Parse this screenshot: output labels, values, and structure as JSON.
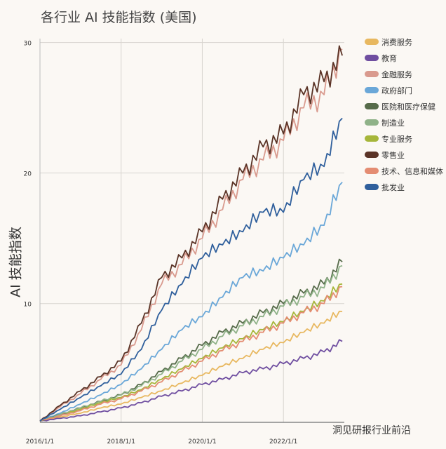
{
  "chart_data": {
    "type": "line",
    "title": "各行业 AI 技能指数 (美国)",
    "ylabel": "AI 技能指数",
    "xlabel": "",
    "x": [
      2016.0,
      2016.5,
      2017.0,
      2017.5,
      2018.0,
      2018.5,
      2019.0,
      2019.5,
      2020.0,
      2020.5,
      2021.0,
      2021.5,
      2022.0,
      2022.5,
      2023.0,
      2023.45
    ],
    "xticks": [
      {
        "x": 2016,
        "label": "2016/1/1"
      },
      {
        "x": 2018,
        "label": "2018/1/1"
      },
      {
        "x": 2020,
        "label": "2020/1/1"
      },
      {
        "x": 2022,
        "label": "2022/1/1"
      }
    ],
    "yticks": [
      {
        "y": 10,
        "label": "10"
      },
      {
        "y": 20,
        "label": "20"
      },
      {
        "y": 30,
        "label": "30"
      }
    ],
    "xlim": [
      2016,
      2023.5
    ],
    "ylim": [
      0.9,
      30.3
    ],
    "grid": true,
    "legend": "right",
    "series": [
      {
        "name": "消费服务",
        "color": "#e8b860",
        "values": [
          1,
          1.3,
          1.6,
          2,
          2.3,
          2.8,
          3.3,
          3.9,
          4.5,
          5.2,
          5.8,
          6.5,
          7,
          7.8,
          8.5,
          9.4
        ]
      },
      {
        "name": "教育",
        "color": "#6f4ea0",
        "values": [
          1,
          1.2,
          1.4,
          1.7,
          2,
          2.4,
          2.9,
          3.3,
          3.8,
          4.2,
          4.7,
          5,
          5.4,
          5.8,
          6.3,
          7.1
        ]
      },
      {
        "name": "金融服务",
        "color": "#d99a8e",
        "values": [
          1,
          2.1,
          3.1,
          4.2,
          5.3,
          8,
          11.5,
          13,
          15,
          17.2,
          19.5,
          21,
          22.5,
          25,
          26,
          29.5
        ]
      },
      {
        "name": "政府部门",
        "color": "#6aa7d8",
        "values": [
          1,
          1.6,
          2.3,
          3,
          3.8,
          5,
          6.5,
          8,
          9,
          10.5,
          12,
          12.5,
          13.5,
          14.5,
          16,
          19.3
        ]
      },
      {
        "name": "医院和医疗保健",
        "color": "#566b4a",
        "values": [
          1,
          1.5,
          2,
          2.5,
          3,
          3.8,
          4.8,
          5.8,
          6.8,
          7.8,
          8.5,
          9.3,
          10,
          10.8,
          11.5,
          13.2
        ]
      },
      {
        "name": "制造业",
        "color": "#8fb288",
        "values": [
          1,
          1.5,
          2,
          2.5,
          3,
          3.7,
          4.6,
          5.6,
          6.5,
          7.5,
          8.3,
          9,
          9.8,
          10.5,
          11.2,
          12.9
        ]
      },
      {
        "name": "专业服务",
        "color": "#a6b63a",
        "values": [
          1,
          1.4,
          1.9,
          2.4,
          2.8,
          3.4,
          4.2,
          5,
          5.8,
          6.6,
          7.3,
          8,
          8.6,
          9.4,
          10.2,
          11.5
        ]
      },
      {
        "name": "零售业",
        "color": "#5a3326",
        "values": [
          1,
          2.2,
          3.3,
          4.4,
          5.6,
          8.5,
          12,
          13.5,
          15.5,
          18,
          20,
          22,
          23,
          26,
          27,
          29
        ]
      },
      {
        "name": "技术、信息和媒体",
        "color": "#e48c72",
        "values": [
          1,
          1.4,
          1.8,
          2.3,
          2.7,
          3.3,
          4,
          4.8,
          5.6,
          6.4,
          7.1,
          7.8,
          8.5,
          9.3,
          10,
          11.3
        ]
      },
      {
        "name": "批发业",
        "color": "#2f5f9c",
        "values": [
          1,
          1.9,
          2.8,
          3.7,
          4.6,
          6.5,
          9.5,
          11.5,
          13.5,
          14.5,
          15.5,
          17,
          17,
          19.5,
          20.5,
          24.2
        ]
      }
    ]
  },
  "watermark": "洞见研报行业前沿"
}
